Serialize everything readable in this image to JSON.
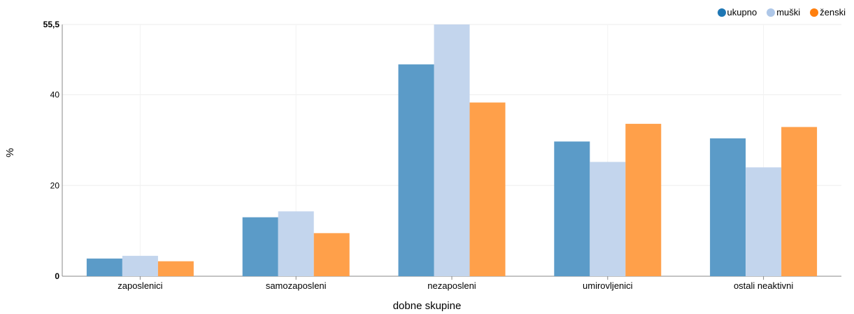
{
  "chart_data": {
    "type": "bar",
    "xlabel": "dobne skupine",
    "ylabel": "%",
    "ylim": [
      0,
      55.5
    ],
    "yticks": [
      {
        "value": 0,
        "label": "0",
        "bold": true
      },
      {
        "value": 20,
        "label": "20",
        "bold": false
      },
      {
        "value": 40,
        "label": "40",
        "bold": false
      },
      {
        "value": 55.5,
        "label": "55,5",
        "bold": true
      }
    ],
    "grid": true,
    "legend_position": "top-right",
    "categories": [
      "zaposlenici",
      "samozaposleni",
      "nezaposleni",
      "umirovljenici",
      "ostali neaktivni"
    ],
    "series": [
      {
        "name": "ukupno",
        "color": "#1f77b4",
        "bar_color": "#5b9bc8",
        "values": [
          3.9,
          13.0,
          46.7,
          29.7,
          30.4
        ]
      },
      {
        "name": "muški",
        "color": "#aec7e8",
        "bar_color": "#c3d5ed",
        "values": [
          4.5,
          14.3,
          55.5,
          25.2,
          24.0
        ]
      },
      {
        "name": "ženski",
        "color": "#ff7f0e",
        "bar_color": "#ffa04a",
        "values": [
          3.3,
          9.5,
          38.3,
          33.6,
          32.9
        ]
      }
    ]
  }
}
